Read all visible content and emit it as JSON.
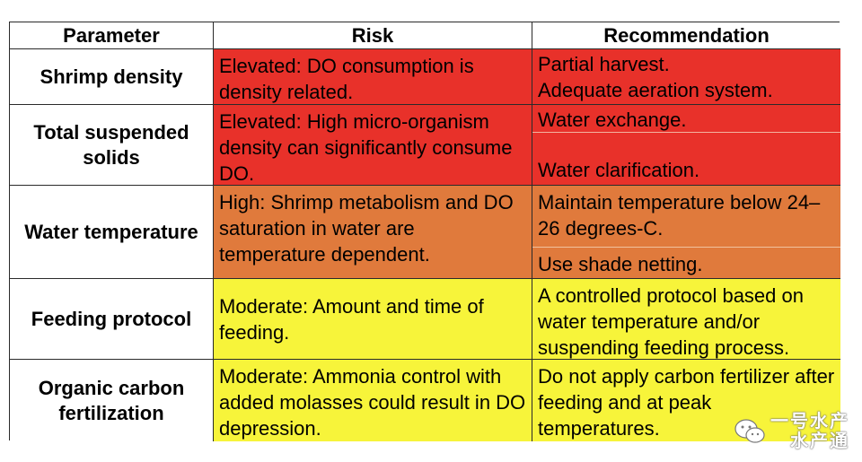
{
  "table": {
    "headers": [
      "Parameter",
      "Risk",
      "Recommendation"
    ],
    "rows": [
      {
        "parameter": "Shrimp density",
        "risk": "Elevated: DO consumption is density related.",
        "recommendations": [
          "Partial harvest.",
          "Adequate aeration system."
        ],
        "color": "#e8312a"
      },
      {
        "parameter": "Total suspended solids",
        "risk": "Elevated: High micro-organism density can significantly consume DO.",
        "recommendations": [
          "Water exchange.",
          "Water clarification."
        ],
        "color": "#e8312a"
      },
      {
        "parameter": "Water temperature",
        "risk": "High: Shrimp metabolism and DO saturation in water are temperature dependent.",
        "recommendations": [
          "Maintain temperature below 24–26 degrees-C.",
          "Use shade netting."
        ],
        "color": "#e07a3c"
      },
      {
        "parameter": "Feeding protocol",
        "risk": "Moderate: Amount and time of feeding.",
        "recommendations": [
          "A controlled protocol based on water temperature and/or suspending feeding process."
        ],
        "color": "#f7f43a"
      },
      {
        "parameter": "Organic carbon fertilization",
        "risk": "Moderate: Ammonia control with added molasses could result in DO depression.",
        "recommendations": [
          "Do not apply carbon fertilizer after feeding and at peak temperatures."
        ],
        "color": "#f7f43a"
      }
    ]
  },
  "watermark": {
    "line1": "一号水产",
    "line2": "水产通",
    "icon": "wechat-icon"
  }
}
